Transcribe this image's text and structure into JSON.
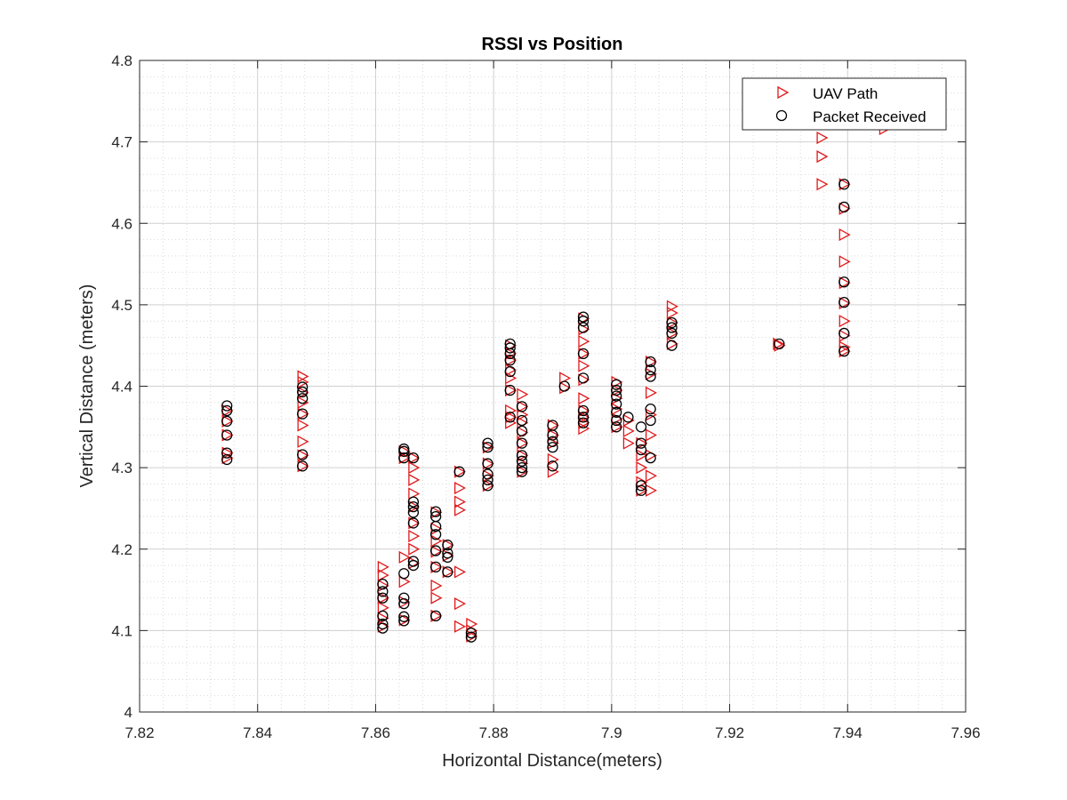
{
  "chart_data": {
    "type": "scatter",
    "title": "RSSI vs Position",
    "xlabel": "Horizontal Distance(meters)",
    "ylabel": "Vertical Distance (meters)",
    "xlim": [
      7.82,
      7.96
    ],
    "ylim": [
      4.0,
      4.8
    ],
    "xticks": [
      "7.82",
      "7.84",
      "7.86",
      "7.88",
      "7.9",
      "7.92",
      "7.94",
      "7.96"
    ],
    "yticks": [
      "4",
      "4.1",
      "4.2",
      "4.3",
      "4.4",
      "4.5",
      "4.6",
      "4.7",
      "4.8"
    ],
    "grid": true,
    "minor_grid": true,
    "legend_position": "top-right",
    "colors": {
      "uav": "#e0191b",
      "packet": "#000000",
      "grid": "#d9d9d9",
      "axis": "#262626"
    },
    "series": [
      {
        "name": "UAV Path",
        "marker": "triangle-right",
        "points": [
          [
            7.8348,
            4.312
          ],
          [
            7.8348,
            4.318
          ],
          [
            7.8348,
            4.34
          ],
          [
            7.8348,
            4.357
          ],
          [
            7.8348,
            4.37
          ],
          [
            7.8476,
            4.302
          ],
          [
            7.8476,
            4.315
          ],
          [
            7.8476,
            4.332
          ],
          [
            7.8476,
            4.352
          ],
          [
            7.8476,
            4.366
          ],
          [
            7.8476,
            4.38
          ],
          [
            7.8476,
            4.392
          ],
          [
            7.8476,
            4.405
          ],
          [
            7.8476,
            4.412
          ],
          [
            7.8612,
            4.105
          ],
          [
            7.8612,
            4.115
          ],
          [
            7.8612,
            4.128
          ],
          [
            7.8612,
            4.14
          ],
          [
            7.8612,
            4.155
          ],
          [
            7.8612,
            4.168
          ],
          [
            7.8612,
            4.178
          ],
          [
            7.8648,
            4.113
          ],
          [
            7.8648,
            4.135
          ],
          [
            7.8648,
            4.16
          ],
          [
            7.8648,
            4.19
          ],
          [
            7.8648,
            4.312
          ],
          [
            7.8648,
            4.32
          ],
          [
            7.8664,
            4.183
          ],
          [
            7.8664,
            4.2
          ],
          [
            7.8664,
            4.216
          ],
          [
            7.8664,
            4.232
          ],
          [
            7.8664,
            4.252
          ],
          [
            7.8664,
            4.268
          ],
          [
            7.8664,
            4.285
          ],
          [
            7.8664,
            4.3
          ],
          [
            7.8664,
            4.312
          ],
          [
            7.8702,
            4.118
          ],
          [
            7.8702,
            4.14
          ],
          [
            7.8702,
            4.155
          ],
          [
            7.8702,
            4.178
          ],
          [
            7.8702,
            4.197
          ],
          [
            7.8702,
            4.21
          ],
          [
            7.8702,
            4.225
          ],
          [
            7.8702,
            4.245
          ],
          [
            7.8722,
            4.172
          ],
          [
            7.8722,
            4.192
          ],
          [
            7.8722,
            4.205
          ],
          [
            7.8742,
            4.105
          ],
          [
            7.8742,
            4.133
          ],
          [
            7.8742,
            4.172
          ],
          [
            7.8742,
            4.248
          ],
          [
            7.8742,
            4.258
          ],
          [
            7.8742,
            4.275
          ],
          [
            7.8742,
            4.295
          ],
          [
            7.8762,
            4.093
          ],
          [
            7.8762,
            4.1
          ],
          [
            7.8762,
            4.108
          ],
          [
            7.879,
            4.278
          ],
          [
            7.879,
            4.29
          ],
          [
            7.879,
            4.305
          ],
          [
            7.879,
            4.325
          ],
          [
            7.8828,
            4.355
          ],
          [
            7.8828,
            4.362
          ],
          [
            7.8828,
            4.37
          ],
          [
            7.8828,
            4.395
          ],
          [
            7.8828,
            4.41
          ],
          [
            7.8828,
            4.42
          ],
          [
            7.8828,
            4.432
          ],
          [
            7.8828,
            4.44
          ],
          [
            7.8828,
            4.45
          ],
          [
            7.8848,
            4.295
          ],
          [
            7.8848,
            4.305
          ],
          [
            7.8848,
            4.315
          ],
          [
            7.8848,
            4.33
          ],
          [
            7.8848,
            4.343
          ],
          [
            7.8848,
            4.355
          ],
          [
            7.8848,
            4.365
          ],
          [
            7.8848,
            4.375
          ],
          [
            7.8848,
            4.39
          ],
          [
            7.89,
            4.295
          ],
          [
            7.89,
            4.31
          ],
          [
            7.89,
            4.33
          ],
          [
            7.89,
            4.34
          ],
          [
            7.89,
            4.352
          ],
          [
            7.892,
            4.398
          ],
          [
            7.892,
            4.41
          ],
          [
            7.8952,
            4.348
          ],
          [
            7.8952,
            4.355
          ],
          [
            7.8952,
            4.362
          ],
          [
            7.8952,
            4.37
          ],
          [
            7.8952,
            4.385
          ],
          [
            7.8952,
            4.408
          ],
          [
            7.8952,
            4.425
          ],
          [
            7.8952,
            4.44
          ],
          [
            7.8952,
            4.455
          ],
          [
            7.8952,
            4.47
          ],
          [
            7.8952,
            4.483
          ],
          [
            7.9008,
            4.35
          ],
          [
            7.9008,
            4.36
          ],
          [
            7.9008,
            4.372
          ],
          [
            7.9008,
            4.385
          ],
          [
            7.9008,
            4.395
          ],
          [
            7.9008,
            4.405
          ],
          [
            7.9028,
            4.33
          ],
          [
            7.9028,
            4.345
          ],
          [
            7.9028,
            4.358
          ],
          [
            7.905,
            4.272
          ],
          [
            7.905,
            4.282
          ],
          [
            7.905,
            4.3
          ],
          [
            7.905,
            4.315
          ],
          [
            7.905,
            4.33
          ],
          [
            7.9066,
            4.272
          ],
          [
            7.9066,
            4.29
          ],
          [
            7.9066,
            4.315
          ],
          [
            7.9066,
            4.34
          ],
          [
            7.9066,
            4.365
          ],
          [
            7.9066,
            4.392
          ],
          [
            7.9066,
            4.415
          ],
          [
            7.9066,
            4.43
          ],
          [
            7.9102,
            4.452
          ],
          [
            7.9102,
            4.465
          ],
          [
            7.9102,
            4.478
          ],
          [
            7.9102,
            4.49
          ],
          [
            7.9102,
            4.498
          ],
          [
            7.9282,
            4.452
          ],
          [
            7.9284,
            4.45
          ],
          [
            7.9356,
            4.648
          ],
          [
            7.9356,
            4.682
          ],
          [
            7.9356,
            4.705
          ],
          [
            7.9394,
            4.443
          ],
          [
            7.9394,
            4.448
          ],
          [
            7.9394,
            4.462
          ],
          [
            7.9394,
            4.48
          ],
          [
            7.9394,
            4.502
          ],
          [
            7.9394,
            4.527
          ],
          [
            7.9394,
            4.553
          ],
          [
            7.9394,
            4.586
          ],
          [
            7.9394,
            4.618
          ],
          [
            7.9394,
            4.648
          ],
          [
            7.9462,
            4.716
          ]
        ]
      },
      {
        "name": "Packet Received",
        "marker": "circle",
        "points": [
          [
            7.8348,
            4.31
          ],
          [
            7.8348,
            4.318
          ],
          [
            7.8348,
            4.34
          ],
          [
            7.8348,
            4.357
          ],
          [
            7.8348,
            4.37
          ],
          [
            7.8348,
            4.376
          ],
          [
            7.8476,
            4.302
          ],
          [
            7.8476,
            4.316
          ],
          [
            7.8476,
            4.366
          ],
          [
            7.8476,
            4.385
          ],
          [
            7.8476,
            4.393
          ],
          [
            7.8476,
            4.399
          ],
          [
            7.8612,
            4.103
          ],
          [
            7.8612,
            4.108
          ],
          [
            7.8612,
            4.118
          ],
          [
            7.8612,
            4.14
          ],
          [
            7.8612,
            4.148
          ],
          [
            7.8612,
            4.157
          ],
          [
            7.8648,
            4.112
          ],
          [
            7.8648,
            4.117
          ],
          [
            7.8648,
            4.133
          ],
          [
            7.8648,
            4.14
          ],
          [
            7.8648,
            4.17
          ],
          [
            7.8648,
            4.312
          ],
          [
            7.8648,
            4.32
          ],
          [
            7.8648,
            4.323
          ],
          [
            7.8664,
            4.18
          ],
          [
            7.8664,
            4.185
          ],
          [
            7.8664,
            4.232
          ],
          [
            7.8664,
            4.245
          ],
          [
            7.8664,
            4.252
          ],
          [
            7.8664,
            4.258
          ],
          [
            7.8664,
            4.312
          ],
          [
            7.8702,
            4.118
          ],
          [
            7.8702,
            4.178
          ],
          [
            7.8702,
            4.198
          ],
          [
            7.8702,
            4.218
          ],
          [
            7.8702,
            4.228
          ],
          [
            7.8702,
            4.24
          ],
          [
            7.8702,
            4.246
          ],
          [
            7.8722,
            4.172
          ],
          [
            7.8722,
            4.19
          ],
          [
            7.8722,
            4.195
          ],
          [
            7.8722,
            4.205
          ],
          [
            7.8742,
            4.295
          ],
          [
            7.8762,
            4.092
          ],
          [
            7.8762,
            4.097
          ],
          [
            7.879,
            4.278
          ],
          [
            7.879,
            4.285
          ],
          [
            7.879,
            4.292
          ],
          [
            7.879,
            4.305
          ],
          [
            7.879,
            4.325
          ],
          [
            7.879,
            4.33
          ],
          [
            7.8828,
            4.362
          ],
          [
            7.8828,
            4.395
          ],
          [
            7.8828,
            4.418
          ],
          [
            7.8828,
            4.432
          ],
          [
            7.8828,
            4.44
          ],
          [
            7.8828,
            4.447
          ],
          [
            7.8828,
            4.452
          ],
          [
            7.8848,
            4.295
          ],
          [
            7.8848,
            4.3
          ],
          [
            7.8848,
            4.308
          ],
          [
            7.8848,
            4.315
          ],
          [
            7.8848,
            4.33
          ],
          [
            7.8848,
            4.345
          ],
          [
            7.8848,
            4.358
          ],
          [
            7.8848,
            4.375
          ],
          [
            7.89,
            4.302
          ],
          [
            7.89,
            4.325
          ],
          [
            7.89,
            4.332
          ],
          [
            7.89,
            4.34
          ],
          [
            7.89,
            4.352
          ],
          [
            7.892,
            4.4
          ],
          [
            7.8952,
            4.355
          ],
          [
            7.8952,
            4.362
          ],
          [
            7.8952,
            4.37
          ],
          [
            7.8952,
            4.41
          ],
          [
            7.8952,
            4.44
          ],
          [
            7.8952,
            4.472
          ],
          [
            7.8952,
            4.48
          ],
          [
            7.8952,
            4.485
          ],
          [
            7.9008,
            4.35
          ],
          [
            7.9008,
            4.358
          ],
          [
            7.9008,
            4.368
          ],
          [
            7.9008,
            4.378
          ],
          [
            7.9008,
            4.388
          ],
          [
            7.9008,
            4.395
          ],
          [
            7.9008,
            4.402
          ],
          [
            7.9028,
            4.362
          ],
          [
            7.905,
            4.272
          ],
          [
            7.905,
            4.278
          ],
          [
            7.905,
            4.322
          ],
          [
            7.905,
            4.33
          ],
          [
            7.905,
            4.35
          ],
          [
            7.9066,
            4.312
          ],
          [
            7.9066,
            4.358
          ],
          [
            7.9066,
            4.372
          ],
          [
            7.9066,
            4.412
          ],
          [
            7.9066,
            4.42
          ],
          [
            7.9066,
            4.43
          ],
          [
            7.9102,
            4.45
          ],
          [
            7.9102,
            4.465
          ],
          [
            7.9102,
            4.472
          ],
          [
            7.9102,
            4.478
          ],
          [
            7.9284,
            4.452
          ],
          [
            7.9394,
            4.443
          ],
          [
            7.9394,
            4.465
          ],
          [
            7.9394,
            4.503
          ],
          [
            7.9394,
            4.528
          ],
          [
            7.9394,
            4.62
          ],
          [
            7.9394,
            4.648
          ]
        ]
      }
    ]
  }
}
